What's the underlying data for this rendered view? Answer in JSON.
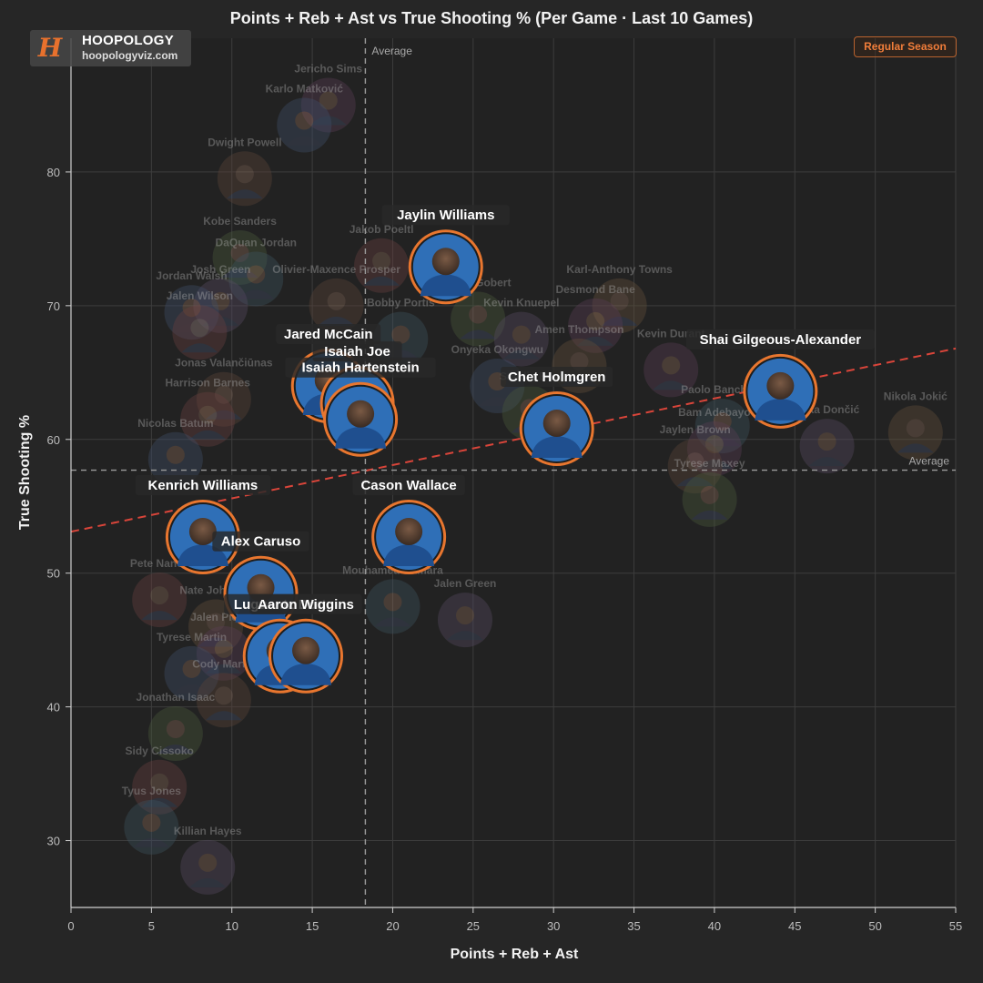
{
  "branding": {
    "name": "HOOPOLOGY",
    "url": "hoopologyviz.com",
    "mark": "H"
  },
  "season_badge": "Regular Season",
  "colors": {
    "background": "#262626",
    "grid": "#3d3d3d",
    "axis": "#cfcfcf",
    "average_line": "#9a9a9a",
    "trend_line": "#d9453a",
    "highlight_ring": "#e8762f",
    "team_blue": "#2f6fb7",
    "label_bg": "#3a3a3a"
  },
  "chart_data": {
    "type": "scatter",
    "title": "Points + Reb + Ast vs True Shooting % (Per Game · Last 10 Games)",
    "xlabel": "Points + Reb + Ast",
    "ylabel": "True Shooting %",
    "xlim": [
      0,
      55
    ],
    "ylim": [
      25,
      90
    ],
    "xticks": [
      0,
      5,
      10,
      15,
      20,
      25,
      30,
      35,
      40,
      45,
      50,
      55
    ],
    "yticks": [
      30,
      40,
      50,
      60,
      70,
      80
    ],
    "grid": true,
    "average_x": 18.3,
    "average_y": 57.7,
    "average_label": "Average",
    "trend_line": {
      "x": [
        0,
        55
      ],
      "y": [
        53.1,
        66.8
      ]
    },
    "highlighted_players": [
      {
        "name": "Jaylin Williams",
        "x": 23.3,
        "y": 72.9
      },
      {
        "name": "Shai Gilgeous-Alexander",
        "x": 44.1,
        "y": 63.6
      },
      {
        "name": "Chet Holmgren",
        "x": 30.2,
        "y": 60.8
      },
      {
        "name": "Jared McCain",
        "x": 16.0,
        "y": 64.0
      },
      {
        "name": "Isaiah Joe",
        "x": 17.8,
        "y": 62.7
      },
      {
        "name": "Isaiah Hartenstein",
        "x": 18.0,
        "y": 61.5
      },
      {
        "name": "Cason Wallace",
        "x": 21.0,
        "y": 52.7
      },
      {
        "name": "Kenrich Williams",
        "x": 8.2,
        "y": 52.7
      },
      {
        "name": "Alex Caruso",
        "x": 11.8,
        "y": 48.5
      },
      {
        "name": "Luguentz Dort",
        "x": 13.0,
        "y": 43.8
      },
      {
        "name": "Aaron Wiggins",
        "x": 14.6,
        "y": 43.8
      }
    ],
    "other_players": [
      {
        "name": "Jericho Sims",
        "x": 16.0,
        "y": 85.0
      },
      {
        "name": "Karlo Matković",
        "x": 14.5,
        "y": 83.5
      },
      {
        "name": "Dwight Powell",
        "x": 10.8,
        "y": 79.5
      },
      {
        "name": "Kobe Sanders",
        "x": 10.5,
        "y": 73.6
      },
      {
        "name": "Jakob Poeltl",
        "x": 19.3,
        "y": 73.0
      },
      {
        "name": "DaQuan Jordan",
        "x": 11.5,
        "y": 72.0
      },
      {
        "name": "Josh Green",
        "x": 9.3,
        "y": 70.0
      },
      {
        "name": "Karl-Anthony Towns",
        "x": 34.1,
        "y": 70.0
      },
      {
        "name": "Desmond Bane",
        "x": 32.6,
        "y": 68.5
      },
      {
        "name": "Jordan Walsh",
        "x": 7.5,
        "y": 69.5
      },
      {
        "name": "Olivier-Maxence Prosper",
        "x": 16.5,
        "y": 70.0
      },
      {
        "name": "Rudy Gobert",
        "x": 25.3,
        "y": 69.0
      },
      {
        "name": "Jalen Wilson",
        "x": 8.0,
        "y": 68.0
      },
      {
        "name": "Bobby Portis",
        "x": 20.5,
        "y": 67.5
      },
      {
        "name": "Kevin Knuepel",
        "x": 28.0,
        "y": 67.5
      },
      {
        "name": "Amen Thompson",
        "x": 31.6,
        "y": 65.5
      },
      {
        "name": "Kevin Durant",
        "x": 37.3,
        "y": 65.2
      },
      {
        "name": "Onyeka Okongwu",
        "x": 26.5,
        "y": 64.0
      },
      {
        "name": "Jonas Valančiūnas",
        "x": 9.5,
        "y": 63.0
      },
      {
        "name": "Saddiq Bey",
        "x": 28.5,
        "y": 62.0
      },
      {
        "name": "Harrison Barnes",
        "x": 8.5,
        "y": 61.5
      },
      {
        "name": "Paolo Banchero",
        "x": 40.5,
        "y": 61.0
      },
      {
        "name": "Luka Dončić",
        "x": 47.0,
        "y": 59.5
      },
      {
        "name": "Nikola Jokić",
        "x": 52.5,
        "y": 60.5
      },
      {
        "name": "Bam Adebayo",
        "x": 40.0,
        "y": 59.3
      },
      {
        "name": "Nicolas Batum",
        "x": 6.5,
        "y": 58.5
      },
      {
        "name": "Jaylen Brown",
        "x": 38.8,
        "y": 58.0
      },
      {
        "name": "Tyrese Maxey",
        "x": 39.7,
        "y": 55.5
      },
      {
        "name": "Pete Nance",
        "x": 5.5,
        "y": 48.0
      },
      {
        "name": "Mouhamed Camara",
        "x": 20.0,
        "y": 47.5
      },
      {
        "name": "Jalen Green",
        "x": 24.5,
        "y": 46.5
      },
      {
        "name": "Nate Johnson",
        "x": 9.0,
        "y": 46.0
      },
      {
        "name": "Jalen Pickett",
        "x": 9.5,
        "y": 44.0
      },
      {
        "name": "Tyrese Martin",
        "x": 7.5,
        "y": 42.5
      },
      {
        "name": "Cody Martin",
        "x": 9.5,
        "y": 40.5
      },
      {
        "name": "Jonathan Isaac",
        "x": 6.5,
        "y": 38.0
      },
      {
        "name": "Sidy Cissoko",
        "x": 5.5,
        "y": 34.0
      },
      {
        "name": "Tyus Jones",
        "x": 5.0,
        "y": 31.0
      },
      {
        "name": "Killian Hayes",
        "x": 8.5,
        "y": 28.0
      }
    ]
  }
}
